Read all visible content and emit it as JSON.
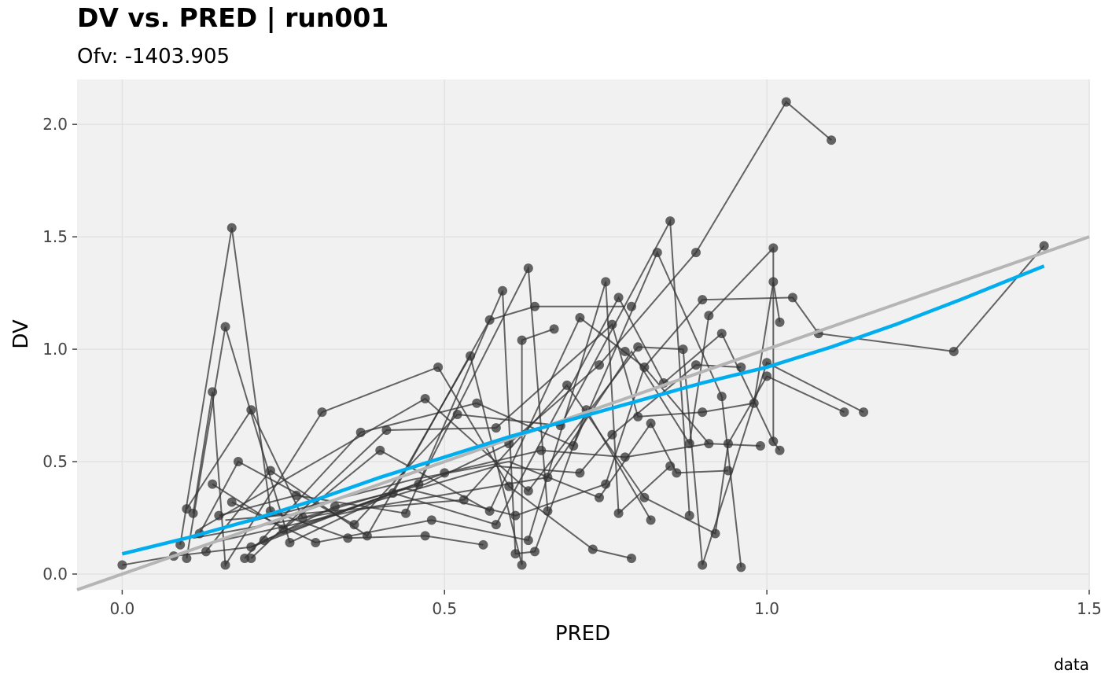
{
  "chart_data": {
    "type": "scatter",
    "title": "DV vs. PRED | run001",
    "subtitle": "Ofv: -1403.905",
    "xlabel": "PRED",
    "ylabel": "DV",
    "caption": "data",
    "xlim": [
      -0.07,
      1.5
    ],
    "ylim": [
      -0.07,
      2.2
    ],
    "xticks": [
      "0.0",
      "0.5",
      "1.0",
      "1.5"
    ],
    "xtick_values": [
      0,
      0.5,
      1.0,
      1.5
    ],
    "yticks": [
      "0.0",
      "0.5",
      "1.0",
      "1.5",
      "2.0"
    ],
    "ytick_values": [
      0,
      0.5,
      1.0,
      1.5,
      2.0
    ],
    "grid": true,
    "colors": {
      "panel": "#f1f1f1",
      "grid": "#e2e2e2",
      "points": "#333333",
      "smooth": "#00aeef",
      "identity": "#b5b5b5"
    },
    "identity_line": {
      "slope": 1,
      "intercept": 0
    },
    "smooth": {
      "x": [
        0.0,
        0.1,
        0.2,
        0.3,
        0.4,
        0.5,
        0.6,
        0.7,
        0.8,
        0.9,
        1.0,
        1.1,
        1.2,
        1.3,
        1.43
      ],
      "y": [
        0.09,
        0.16,
        0.24,
        0.33,
        0.43,
        0.52,
        0.61,
        0.69,
        0.77,
        0.85,
        0.92,
        1.01,
        1.11,
        1.22,
        1.37
      ]
    },
    "points": [
      [
        0.0,
        0.04
      ],
      [
        0.08,
        0.08
      ],
      [
        0.09,
        0.13
      ],
      [
        0.1,
        0.07
      ],
      [
        0.1,
        0.29
      ],
      [
        0.11,
        0.27
      ],
      [
        0.12,
        0.18
      ],
      [
        0.13,
        0.1
      ],
      [
        0.14,
        0.4
      ],
      [
        0.14,
        0.81
      ],
      [
        0.15,
        0.26
      ],
      [
        0.16,
        0.04
      ],
      [
        0.16,
        1.1
      ],
      [
        0.17,
        0.32
      ],
      [
        0.17,
        1.54
      ],
      [
        0.18,
        0.5
      ],
      [
        0.19,
        0.07
      ],
      [
        0.2,
        0.12
      ],
      [
        0.2,
        0.07
      ],
      [
        0.2,
        0.73
      ],
      [
        0.22,
        0.15
      ],
      [
        0.23,
        0.28
      ],
      [
        0.23,
        0.46
      ],
      [
        0.25,
        0.2
      ],
      [
        0.26,
        0.14
      ],
      [
        0.27,
        0.35
      ],
      [
        0.28,
        0.25
      ],
      [
        0.3,
        0.14
      ],
      [
        0.31,
        0.72
      ],
      [
        0.33,
        0.3
      ],
      [
        0.35,
        0.16
      ],
      [
        0.36,
        0.22
      ],
      [
        0.37,
        0.63
      ],
      [
        0.38,
        0.17
      ],
      [
        0.4,
        0.55
      ],
      [
        0.41,
        0.64
      ],
      [
        0.42,
        0.36
      ],
      [
        0.44,
        0.27
      ],
      [
        0.46,
        0.4
      ],
      [
        0.47,
        0.17
      ],
      [
        0.47,
        0.78
      ],
      [
        0.48,
        0.24
      ],
      [
        0.49,
        0.92
      ],
      [
        0.5,
        0.45
      ],
      [
        0.52,
        0.71
      ],
      [
        0.53,
        0.33
      ],
      [
        0.54,
        0.97
      ],
      [
        0.55,
        0.76
      ],
      [
        0.56,
        0.13
      ],
      [
        0.57,
        0.28
      ],
      [
        0.57,
        1.13
      ],
      [
        0.58,
        0.65
      ],
      [
        0.58,
        0.22
      ],
      [
        0.59,
        1.26
      ],
      [
        0.6,
        0.58
      ],
      [
        0.6,
        0.39
      ],
      [
        0.61,
        0.26
      ],
      [
        0.61,
        0.09
      ],
      [
        0.62,
        1.04
      ],
      [
        0.62,
        0.04
      ],
      [
        0.63,
        0.37
      ],
      [
        0.63,
        1.36
      ],
      [
        0.63,
        0.15
      ],
      [
        0.64,
        0.1
      ],
      [
        0.64,
        1.19
      ],
      [
        0.65,
        0.55
      ],
      [
        0.66,
        0.43
      ],
      [
        0.66,
        0.28
      ],
      [
        0.67,
        1.09
      ],
      [
        0.68,
        0.66
      ],
      [
        0.69,
        0.84
      ],
      [
        0.7,
        0.57
      ],
      [
        0.71,
        1.14
      ],
      [
        0.71,
        0.45
      ],
      [
        0.72,
        0.73
      ],
      [
        0.73,
        0.11
      ],
      [
        0.74,
        0.34
      ],
      [
        0.74,
        0.93
      ],
      [
        0.75,
        1.3
      ],
      [
        0.75,
        0.4
      ],
      [
        0.76,
        0.62
      ],
      [
        0.76,
        1.11
      ],
      [
        0.77,
        0.27
      ],
      [
        0.77,
        1.23
      ],
      [
        0.78,
        0.52
      ],
      [
        0.78,
        0.99
      ],
      [
        0.79,
        1.19
      ],
      [
        0.79,
        0.07
      ],
      [
        0.8,
        0.7
      ],
      [
        0.8,
        1.01
      ],
      [
        0.81,
        0.34
      ],
      [
        0.81,
        0.92
      ],
      [
        0.82,
        0.24
      ],
      [
        0.82,
        0.67
      ],
      [
        0.83,
        1.43
      ],
      [
        0.84,
        0.85
      ],
      [
        0.85,
        1.57
      ],
      [
        0.85,
        0.48
      ],
      [
        0.86,
        0.45
      ],
      [
        0.87,
        1.0
      ],
      [
        0.88,
        0.26
      ],
      [
        0.88,
        0.58
      ],
      [
        0.89,
        1.43
      ],
      [
        0.89,
        0.93
      ],
      [
        0.9,
        0.72
      ],
      [
        0.9,
        1.22
      ],
      [
        0.9,
        0.04
      ],
      [
        0.91,
        1.15
      ],
      [
        0.91,
        0.58
      ],
      [
        0.92,
        0.18
      ],
      [
        0.93,
        0.79
      ],
      [
        0.93,
        1.07
      ],
      [
        0.94,
        0.46
      ],
      [
        0.94,
        0.58
      ],
      [
        0.96,
        0.03
      ],
      [
        0.96,
        0.92
      ],
      [
        0.98,
        0.76
      ],
      [
        0.99,
        0.57
      ],
      [
        1.0,
        0.88
      ],
      [
        1.0,
        0.94
      ],
      [
        1.01,
        1.45
      ],
      [
        1.01,
        0.59
      ],
      [
        1.01,
        1.3
      ],
      [
        1.02,
        1.12
      ],
      [
        1.02,
        0.55
      ],
      [
        1.03,
        2.1
      ],
      [
        1.04,
        1.23
      ],
      [
        1.08,
        1.07
      ],
      [
        1.1,
        1.93
      ],
      [
        1.12,
        0.72
      ],
      [
        1.15,
        0.72
      ],
      [
        1.29,
        0.99
      ],
      [
        1.43,
        1.46
      ]
    ],
    "paths": [
      [
        [
          0.0,
          0.04
        ],
        [
          0.08,
          0.08
        ],
        [
          0.2,
          0.12
        ],
        [
          0.33,
          0.3
        ],
        [
          0.47,
          0.4
        ],
        [
          0.6,
          0.58
        ],
        [
          0.74,
          0.93
        ],
        [
          0.89,
          1.43
        ],
        [
          1.03,
          2.1
        ],
        [
          1.1,
          1.93
        ]
      ],
      [
        [
          0.09,
          0.13
        ],
        [
          0.17,
          1.54
        ],
        [
          0.23,
          0.28
        ],
        [
          0.35,
          0.16
        ],
        [
          0.47,
          0.17
        ],
        [
          0.56,
          0.13
        ]
      ],
      [
        [
          0.1,
          0.07
        ],
        [
          0.16,
          1.1
        ],
        [
          0.26,
          0.14
        ],
        [
          0.42,
          0.36
        ],
        [
          0.57,
          1.13
        ],
        [
          0.64,
          1.19
        ],
        [
          0.78,
          1.19
        ]
      ],
      [
        [
          0.1,
          0.29
        ],
        [
          0.2,
          0.73
        ],
        [
          0.28,
          0.25
        ],
        [
          0.46,
          0.4
        ],
        [
          0.63,
          1.36
        ],
        [
          0.66,
          0.28
        ]
      ],
      [
        [
          0.11,
          0.27
        ],
        [
          0.14,
          0.81
        ],
        [
          0.16,
          0.04
        ],
        [
          0.31,
          0.72
        ],
        [
          0.49,
          0.92
        ],
        [
          0.6,
          0.39
        ],
        [
          0.73,
          0.11
        ],
        [
          0.79,
          0.07
        ]
      ],
      [
        [
          0.12,
          0.18
        ],
        [
          0.18,
          0.5
        ],
        [
          0.36,
          0.22
        ],
        [
          0.52,
          0.71
        ],
        [
          0.68,
          0.66
        ],
        [
          0.85,
          1.57
        ],
        [
          0.88,
          0.26
        ]
      ],
      [
        [
          0.13,
          0.1
        ],
        [
          0.23,
          0.46
        ],
        [
          0.38,
          0.17
        ],
        [
          0.54,
          0.97
        ],
        [
          0.62,
          0.04
        ],
        [
          0.62,
          1.04
        ],
        [
          0.67,
          1.09
        ]
      ],
      [
        [
          0.14,
          0.4
        ],
        [
          0.25,
          0.2
        ],
        [
          0.4,
          0.55
        ],
        [
          0.57,
          0.28
        ],
        [
          0.71,
          1.14
        ],
        [
          0.81,
          0.92
        ],
        [
          0.9,
          1.22
        ],
        [
          1.04,
          1.23
        ],
        [
          1.08,
          1.07
        ],
        [
          1.29,
          0.99
        ],
        [
          1.43,
          1.46
        ]
      ],
      [
        [
          0.15,
          0.26
        ],
        [
          0.27,
          0.35
        ],
        [
          0.44,
          0.27
        ],
        [
          0.59,
          1.26
        ],
        [
          0.61,
          0.09
        ],
        [
          0.64,
          0.1
        ],
        [
          0.72,
          0.73
        ],
        [
          0.82,
          0.24
        ]
      ],
      [
        [
          0.17,
          0.32
        ],
        [
          0.3,
          0.14
        ],
        [
          0.48,
          0.24
        ],
        [
          0.63,
          0.15
        ],
        [
          0.75,
          1.3
        ],
        [
          0.77,
          0.27
        ],
        [
          0.85,
          0.48
        ]
      ],
      [
        [
          0.19,
          0.07
        ],
        [
          0.37,
          0.63
        ],
        [
          0.55,
          0.76
        ],
        [
          0.7,
          0.57
        ],
        [
          0.83,
          1.43
        ],
        [
          0.93,
          0.79
        ],
        [
          0.96,
          0.03
        ]
      ],
      [
        [
          0.2,
          0.07
        ],
        [
          0.41,
          0.64
        ],
        [
          0.58,
          0.65
        ],
        [
          0.76,
          1.11
        ],
        [
          0.8,
          0.7
        ],
        [
          0.9,
          0.72
        ],
        [
          0.98,
          0.76
        ],
        [
          1.01,
          1.3
        ],
        [
          1.02,
          1.12
        ]
      ],
      [
        [
          0.22,
          0.15
        ],
        [
          0.42,
          0.36
        ],
        [
          0.58,
          0.22
        ],
        [
          0.77,
          1.23
        ],
        [
          0.84,
          0.85
        ],
        [
          0.93,
          1.07
        ],
        [
          1.01,
          0.59
        ],
        [
          1.02,
          0.55
        ]
      ],
      [
        [
          0.2,
          0.12
        ],
        [
          0.5,
          0.45
        ],
        [
          0.65,
          0.55
        ],
        [
          0.78,
          0.52
        ],
        [
          0.91,
          0.58
        ],
        [
          0.99,
          0.57
        ]
      ],
      [
        [
          0.16,
          0.24
        ],
        [
          0.53,
          0.33
        ],
        [
          0.69,
          0.84
        ],
        [
          0.81,
          0.34
        ],
        [
          0.92,
          0.18
        ],
        [
          0.94,
          0.58
        ],
        [
          1.0,
          0.88
        ],
        [
          1.12,
          0.72
        ]
      ],
      [
        [
          0.12,
          0.2
        ],
        [
          0.47,
          0.78
        ],
        [
          0.63,
          0.37
        ],
        [
          0.8,
          1.01
        ],
        [
          0.87,
          1.0
        ],
        [
          0.9,
          0.04
        ],
        [
          1.0,
          0.94
        ],
        [
          1.15,
          0.72
        ]
      ],
      [
        [
          0.18,
          0.22
        ],
        [
          0.45,
          0.42
        ],
        [
          0.6,
          0.5
        ],
        [
          0.74,
          0.34
        ],
        [
          0.82,
          0.67
        ],
        [
          0.86,
          0.45
        ],
        [
          0.94,
          0.46
        ]
      ],
      [
        [
          0.14,
          0.14
        ],
        [
          0.39,
          0.3
        ],
        [
          0.66,
          0.43
        ],
        [
          0.79,
          0.99
        ],
        [
          0.88,
          0.58
        ],
        [
          0.91,
          1.15
        ],
        [
          1.01,
          1.45
        ],
        [
          1.01,
          0.59
        ]
      ],
      [
        [
          0.11,
          0.16
        ],
        [
          0.34,
          0.28
        ],
        [
          0.58,
          0.48
        ],
        [
          0.71,
          0.45
        ],
        [
          0.76,
          0.62
        ],
        [
          0.89,
          0.93
        ],
        [
          0.96,
          0.92
        ]
      ],
      [
        [
          0.24,
          0.18
        ],
        [
          0.44,
          0.38
        ],
        [
          0.61,
          0.26
        ],
        [
          0.75,
          0.4
        ],
        [
          0.81,
          0.92
        ],
        [
          0.91,
          0.58
        ]
      ]
    ]
  }
}
